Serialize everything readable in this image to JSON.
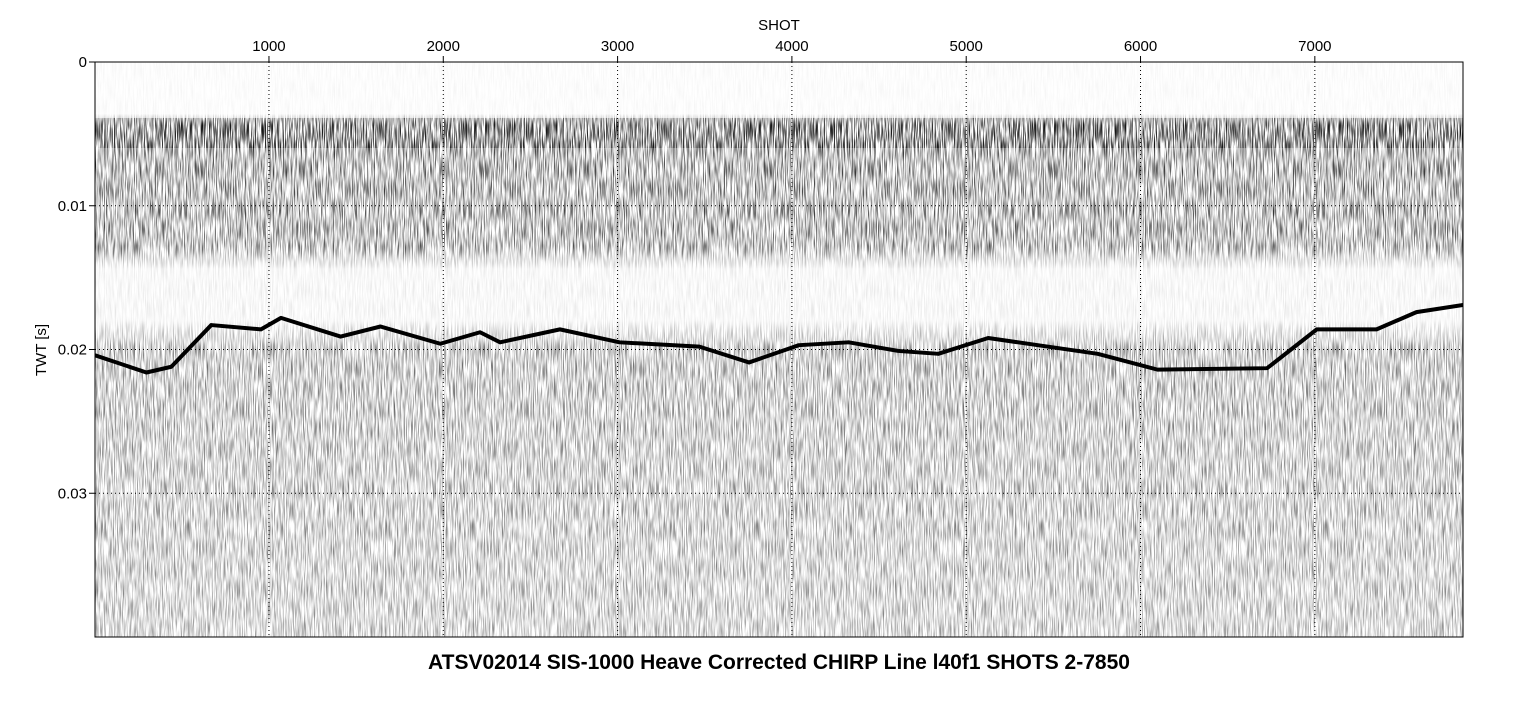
{
  "chart_data": {
    "type": "line",
    "title": "ATSV02014 SIS-1000 Heave Corrected CHIRP Line l40f1 SHOTS 2-7850",
    "x_label": "SHOT",
    "y_label": "TWT [s]",
    "xlim": [
      2,
      7850
    ],
    "xticks": [
      1000,
      2000,
      3000,
      4000,
      5000,
      6000,
      7000
    ],
    "ylim": [
      0,
      0.04
    ],
    "yticks": [
      0,
      0.01,
      0.02,
      0.03
    ],
    "y_inverted": true,
    "grid": true,
    "x": [
      2,
      297,
      440,
      669,
      954,
      1069,
      1411,
      1640,
      1983,
      2211,
      2326,
      2669,
      3011,
      3469,
      3754,
      4040,
      4326,
      4611,
      4840,
      5126,
      5411,
      5754,
      6097,
      6726,
      7011,
      7354,
      7583,
      7850
    ],
    "series": [
      {
        "color": "#000000",
        "values": [
          0.0204,
          0.0216,
          0.0212,
          0.0183,
          0.0186,
          0.0178,
          0.0191,
          0.0184,
          0.0196,
          0.0188,
          0.0195,
          0.0186,
          0.0195,
          0.0198,
          0.0209,
          0.0197,
          0.0195,
          0.0201,
          0.0203,
          0.0192,
          0.0197,
          0.0203,
          0.0214,
          0.0213,
          0.0186,
          0.0186,
          0.0174,
          0.0169
        ]
      }
    ]
  }
}
